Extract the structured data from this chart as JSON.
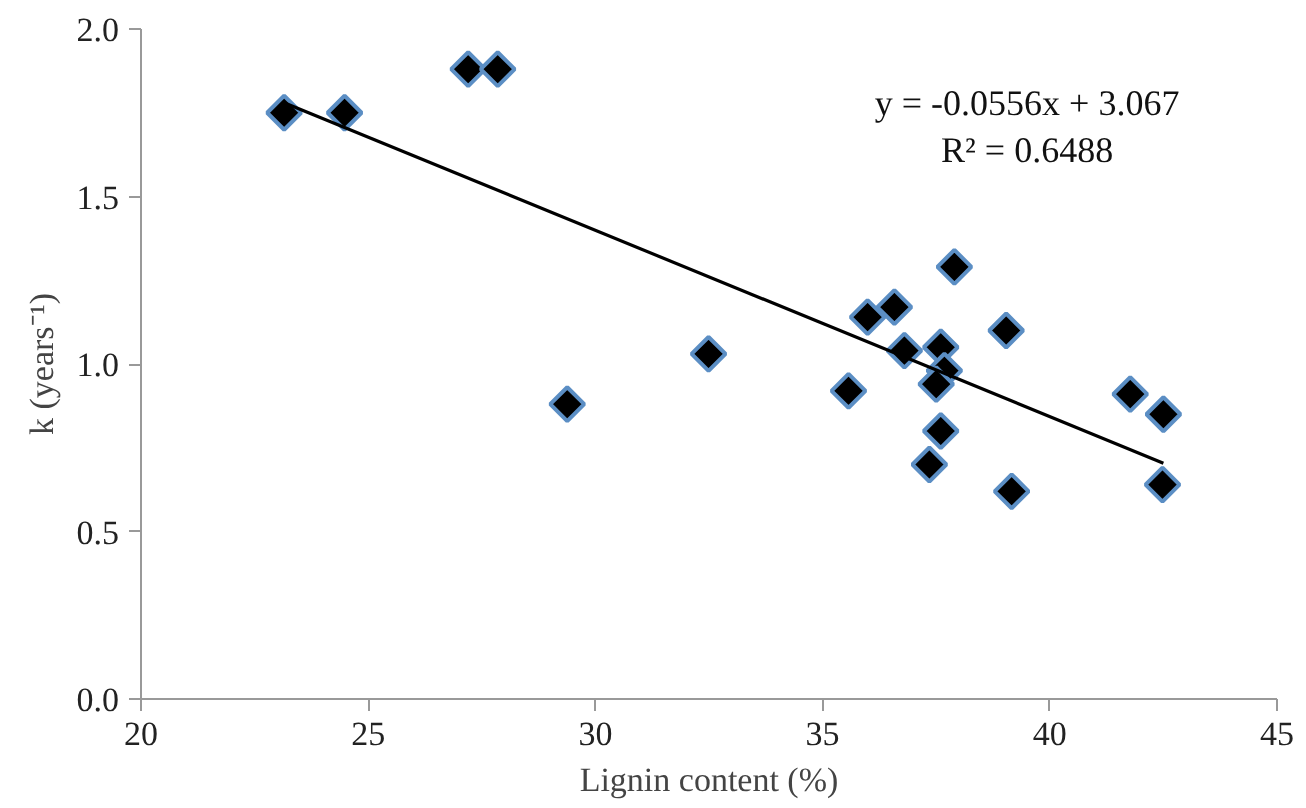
{
  "chart_data": {
    "type": "scatter",
    "xlabel": "Lignin content (%)",
    "ylabel": "k (years⁻¹)",
    "xlim": [
      20,
      45
    ],
    "ylim": [
      0,
      2
    ],
    "xticks": [
      20,
      25,
      30,
      35,
      40,
      45
    ],
    "yticks": [
      {
        "value": 0,
        "label": "0.0"
      },
      {
        "value": 0.5,
        "label": "0.5"
      },
      {
        "value": 1,
        "label": "1.0"
      },
      {
        "value": 1.5,
        "label": "1.5"
      },
      {
        "value": 2,
        "label": "2.0"
      }
    ],
    "grid": false,
    "marker": "diamond",
    "annotations": [
      "y = -0.0556x + 3.067",
      "R² = 0.6488"
    ],
    "series": [
      {
        "color": "#000000",
        "x": [
          23.15,
          24.48,
          27.2,
          27.85,
          29.38,
          32.49,
          35.57,
          35.99,
          36.58,
          36.8,
          37.6,
          37.68,
          37.5,
          37.6,
          37.35,
          37.9,
          39.04,
          39.16,
          41.77,
          42.5,
          42.48
        ],
        "values": [
          1.75,
          1.75,
          1.88,
          1.88,
          0.88,
          1.03,
          0.92,
          1.14,
          1.17,
          1.04,
          1.05,
          0.98,
          0.94,
          0.8,
          0.7,
          1.29,
          1.1,
          0.62,
          0.91,
          0.85,
          0.64
        ]
      },
      {
        "type": "line",
        "color": "#000000",
        "marker": "none",
        "line_style": "solid",
        "x": [
          23.15,
          42.5
        ],
        "values": [
          1.78,
          0.704
        ]
      }
    ]
  }
}
